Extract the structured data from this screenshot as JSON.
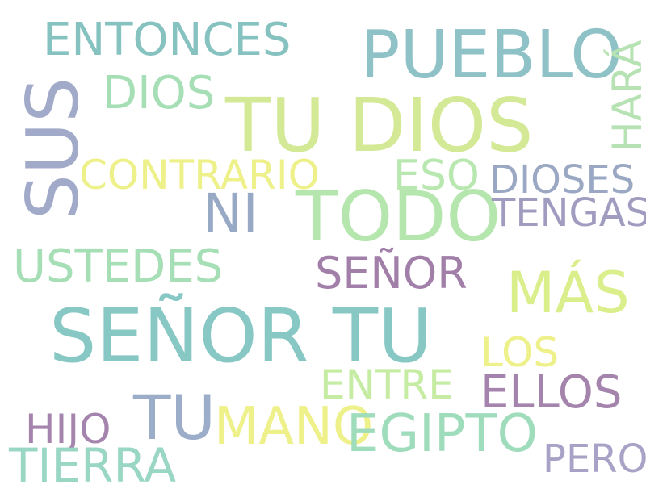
{
  "word_cloud": {
    "words": [
      {
        "text": "ENTONCES",
        "color": "#86c2c0"
      },
      {
        "text": "PUEBLO",
        "color": "#8fc2c6"
      },
      {
        "text": "HARÁ",
        "color": "#b7e3b4"
      },
      {
        "text": "DIOS",
        "color": "#a6dfb6"
      },
      {
        "text": "SUS",
        "color": "#a1aac8"
      },
      {
        "text": "TU DIOS",
        "color": "#d3e996"
      },
      {
        "text": "CONTRARIO",
        "color": "#eef08a"
      },
      {
        "text": "ESO",
        "color": "#b8e8b0"
      },
      {
        "text": "DIOSES",
        "color": "#9aa8c3"
      },
      {
        "text": "NI",
        "color": "#98a9c6"
      },
      {
        "text": "TODO",
        "color": "#b4e6ad"
      },
      {
        "text": "TENGAS",
        "color": "#a09cc0"
      },
      {
        "text": "USTEDES",
        "color": "#a6dfb6"
      },
      {
        "text": "SEÑOR",
        "color": "#a17fa8"
      },
      {
        "text": "MÁS",
        "color": "#dbee8c"
      },
      {
        "text": "SEÑOR TU",
        "color": "#88c8c4"
      },
      {
        "text": "LOS",
        "color": "#eef08a"
      },
      {
        "text": "ENTRE",
        "color": "#c5eca2"
      },
      {
        "text": "ELLOS",
        "color": "#a484ac"
      },
      {
        "text": "HIJO",
        "color": "#a484ac"
      },
      {
        "text": "TU",
        "color": "#9badc8"
      },
      {
        "text": "MANO",
        "color": "#eef08a"
      },
      {
        "text": "EGIPTO",
        "color": "#9fdcbc"
      },
      {
        "text": "TIERRA",
        "color": "#99d6c4"
      },
      {
        "text": "PERO",
        "color": "#a8a2c6"
      }
    ]
  }
}
